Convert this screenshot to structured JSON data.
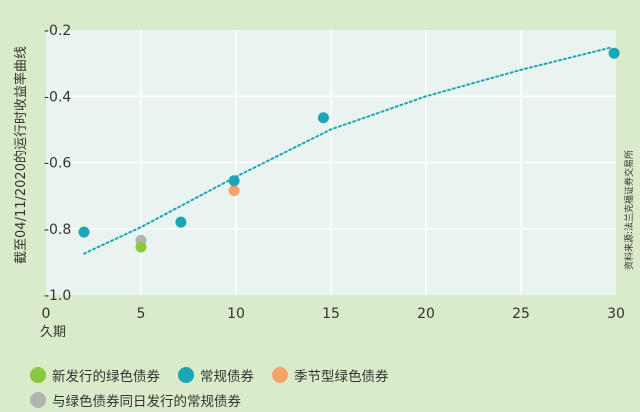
{
  "chart_data": {
    "type": "scatter",
    "xlabel": "久期",
    "ylabel": "截至04/11/2020的运行时收益率曲线",
    "source": "资料来源:法兰克福证券交易所",
    "xlim": [
      0,
      30
    ],
    "ylim": [
      -1.0,
      -0.2
    ],
    "xticks": [
      0,
      5,
      10,
      15,
      20,
      25,
      30
    ],
    "yticks": [
      -0.2,
      -0.4,
      -0.6,
      -0.8,
      -1.0
    ],
    "ytick_labels": [
      "-0.2",
      "-0.4",
      "-0.6",
      "-0.8",
      "-1.0"
    ],
    "grid": true,
    "series": [
      {
        "name": "新发行的绿色债券",
        "color": "#8dc63f",
        "points": [
          [
            5.0,
            -0.855
          ]
        ]
      },
      {
        "name": "常规债券",
        "color": "#1aa6b7",
        "points": [
          [
            2.0,
            -0.81
          ],
          [
            7.1,
            -0.78
          ],
          [
            9.9,
            -0.655
          ],
          [
            14.6,
            -0.465
          ],
          [
            29.9,
            -0.27
          ]
        ]
      },
      {
        "name": "季节型绿色债券",
        "color": "#f5a26b",
        "points": [
          [
            9.9,
            -0.685
          ]
        ]
      },
      {
        "name": "与绿色债券同日发行的常规债券",
        "color": "#b3b3b3",
        "points": [
          [
            5.0,
            -0.835
          ]
        ]
      }
    ],
    "trendline": {
      "style": "dotted",
      "color": "#1aa6b7",
      "points": [
        [
          2,
          -0.875
        ],
        [
          5,
          -0.795
        ],
        [
          10,
          -0.643
        ],
        [
          15,
          -0.5
        ],
        [
          20,
          -0.4
        ],
        [
          25,
          -0.32
        ],
        [
          29.8,
          -0.252
        ]
      ]
    },
    "legend_rows": [
      [
        0,
        1,
        2
      ],
      [
        3
      ]
    ]
  }
}
